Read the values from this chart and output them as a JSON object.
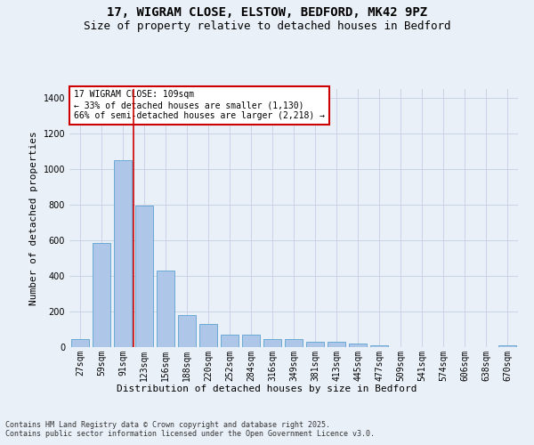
{
  "title": "17, WIGRAM CLOSE, ELSTOW, BEDFORD, MK42 9PZ",
  "subtitle": "Size of property relative to detached houses in Bedford",
  "xlabel": "Distribution of detached houses by size in Bedford",
  "ylabel": "Number of detached properties",
  "categories": [
    "27sqm",
    "59sqm",
    "91sqm",
    "123sqm",
    "156sqm",
    "188sqm",
    "220sqm",
    "252sqm",
    "284sqm",
    "316sqm",
    "349sqm",
    "381sqm",
    "413sqm",
    "445sqm",
    "477sqm",
    "509sqm",
    "541sqm",
    "574sqm",
    "606sqm",
    "638sqm",
    "670sqm"
  ],
  "values": [
    45,
    585,
    1048,
    793,
    430,
    178,
    128,
    68,
    68,
    43,
    43,
    28,
    28,
    18,
    12,
    0,
    0,
    0,
    0,
    0,
    12
  ],
  "bar_color": "#aec6e8",
  "bar_edge_color": "#6aaad4",
  "grid_color": "#c8d4e8",
  "bg_color": "#eaf0f8",
  "vline_x_index": 2,
  "vline_color": "#cc0000",
  "annotation_line1": "17 WIGRAM CLOSE: 109sqm",
  "annotation_line2": "← 33% of detached houses are smaller (1,130)",
  "annotation_line3": "66% of semi-detached houses are larger (2,218) →",
  "annotation_box_color": "#cc0000",
  "annotation_box_bg": "#ffffff",
  "ylim": [
    0,
    1450
  ],
  "yticks": [
    0,
    200,
    400,
    600,
    800,
    1000,
    1200,
    1400
  ],
  "footnote_line1": "Contains HM Land Registry data © Crown copyright and database right 2025.",
  "footnote_line2": "Contains public sector information licensed under the Open Government Licence v3.0.",
  "title_fontsize": 10,
  "subtitle_fontsize": 9,
  "label_fontsize": 8,
  "tick_fontsize": 7,
  "annotation_fontsize": 7,
  "footnote_fontsize": 6
}
